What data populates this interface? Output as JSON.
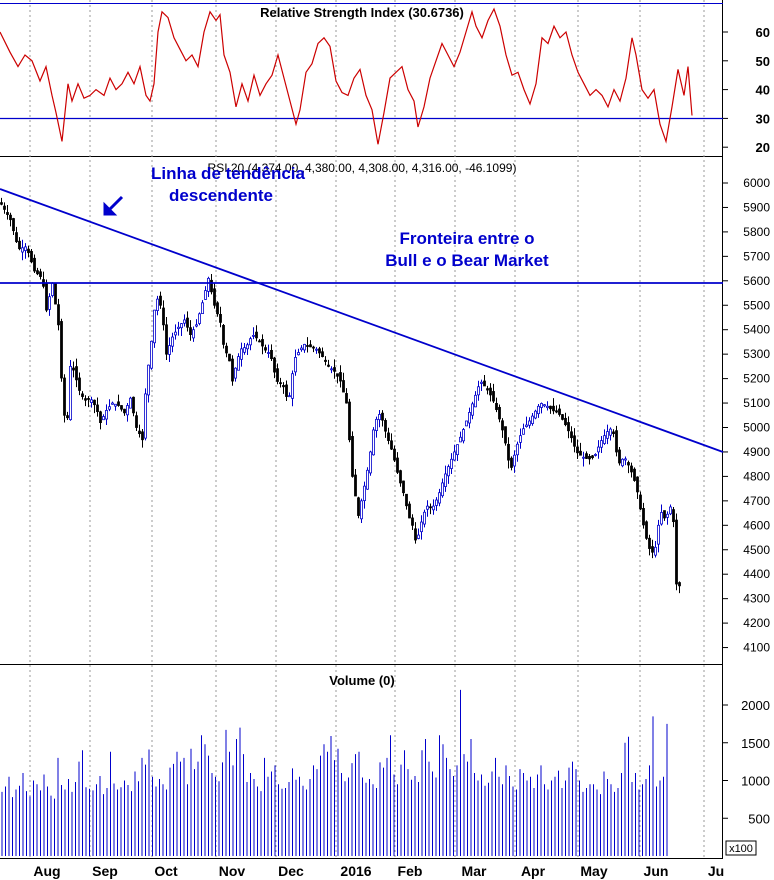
{
  "chart_data": [
    {
      "type": "line",
      "panel": "rsi",
      "title": "Relative Strength Index (30.6736)",
      "ylim": [
        17,
        70
      ],
      "yticks": [
        "60",
        "50",
        "40",
        "30",
        "20"
      ],
      "ytick_values": [
        60,
        50,
        40,
        30,
        20
      ],
      "reference_line": 30,
      "series": [
        {
          "color": "#cc0000",
          "x_index": [
            0,
            10,
            18,
            25,
            32,
            40,
            46,
            52,
            56,
            62,
            68,
            72,
            78,
            84,
            90,
            96,
            104,
            110,
            116,
            122,
            128,
            134,
            140,
            146,
            150,
            154,
            158,
            162,
            168,
            174,
            180,
            186,
            192,
            198,
            204,
            210,
            216,
            220,
            224,
            230,
            236,
            242,
            248,
            254,
            260,
            266,
            272,
            278,
            284,
            290,
            296,
            300,
            306,
            312,
            318,
            324,
            330,
            336,
            342,
            348,
            354,
            360,
            366,
            372,
            378,
            384,
            390,
            396,
            402,
            408,
            414,
            418,
            424,
            430,
            436,
            442,
            448,
            454,
            460,
            466,
            472,
            476,
            482,
            488,
            494,
            500,
            506,
            512,
            518,
            524,
            530,
            536,
            542,
            548,
            554,
            560,
            566,
            572,
            578,
            584,
            590,
            596,
            602,
            608,
            614,
            620,
            626,
            632,
            636,
            642,
            648,
            654,
            660,
            666,
            672,
            678,
            684,
            688,
            692
          ],
          "values": [
            60,
            53,
            48,
            52,
            50,
            43,
            48,
            38,
            32,
            22,
            42,
            36,
            42,
            37,
            38,
            40,
            38,
            44,
            40,
            42,
            46,
            42,
            48,
            38,
            36,
            42,
            60,
            67,
            65,
            58,
            54,
            50,
            52,
            48,
            60,
            67,
            64,
            66,
            52,
            46,
            34,
            42,
            36,
            45,
            38,
            42,
            45,
            52,
            44,
            36,
            28,
            33,
            46,
            49,
            56,
            58,
            55,
            43,
            39,
            38,
            44,
            47,
            38,
            33,
            21,
            32,
            44,
            46,
            48,
            40,
            36,
            27,
            34,
            44,
            50,
            56,
            52,
            48,
            53,
            60,
            67,
            62,
            58,
            64,
            68,
            62,
            52,
            45,
            46,
            40,
            35,
            42,
            58,
            56,
            62,
            58,
            60,
            52,
            46,
            42,
            38,
            40,
            38,
            34,
            40,
            36,
            44,
            58,
            52,
            40,
            37,
            40,
            28,
            22,
            34,
            47,
            38,
            48,
            31
          ]
        }
      ]
    },
    {
      "type": "candlestick",
      "panel": "price",
      "title": "RSI 20 (4,374.00 ,4,380.00, 4,308.00, 4,316.00, -46.1099)",
      "ylim": [
        4080,
        6080
      ],
      "yticks": [
        "6000",
        "5900",
        "5800",
        "5700",
        "5600",
        "5500",
        "5400",
        "5300",
        "5200",
        "5100",
        "5000",
        "4900",
        "4800",
        "4700",
        "4600",
        "4500",
        "4400",
        "4300",
        "4200",
        "4100"
      ],
      "ytick_values": [
        6000,
        5900,
        5800,
        5700,
        5600,
        5500,
        5400,
        5300,
        5200,
        5100,
        5000,
        4900,
        4800,
        4700,
        4600,
        4500,
        4400,
        4300,
        4200,
        4100
      ],
      "annotations": [
        {
          "text_lines": [
            "Linha de tendência",
            "descendente"
          ],
          "color": "#0000cc"
        },
        {
          "text_lines": [
            "Fronteira entre o",
            "Bull e o Bear Market"
          ],
          "color": "#0000cc"
        }
      ],
      "lines": [
        {
          "kind": "horizontal",
          "value": 5590,
          "color": "#0000cc"
        },
        {
          "kind": "trend",
          "from_index": 0,
          "from_value": 5970,
          "to_index": 770,
          "to_value": 4880,
          "color": "#0000cc"
        }
      ],
      "close_path_index": [
        0,
        10,
        18,
        26,
        34,
        42,
        46,
        52,
        58,
        62,
        66,
        70,
        74,
        78,
        84,
        90,
        96,
        100,
        106,
        112,
        118,
        124,
        130,
        136,
        142,
        146,
        150,
        154,
        158,
        162,
        166,
        172,
        178,
        184,
        190,
        196,
        202,
        208,
        214,
        220,
        224,
        228,
        232,
        236,
        240,
        246,
        252,
        258,
        264,
        270,
        276,
        282,
        288,
        294,
        300,
        304,
        310,
        316,
        322,
        328,
        334,
        340,
        346,
        352,
        358,
        362,
        366,
        370,
        374,
        380,
        386,
        392,
        398,
        404,
        408,
        412,
        416,
        420,
        426,
        432,
        438,
        444,
        450,
        456,
        462,
        468,
        474,
        480,
        486,
        492,
        498,
        504,
        510,
        516,
        522,
        528,
        534,
        540,
        546,
        552,
        558,
        564,
        570,
        576,
        582,
        588,
        594,
        600,
        606,
        612,
        618,
        624,
        630,
        636,
        642,
        648,
        654,
        660,
        664,
        668,
        672,
        676,
        680,
        684,
        688,
        692
      ],
      "close_path_values": [
        5920,
        5850,
        5730,
        5740,
        5640,
        5610,
        5480,
        5590,
        5420,
        5130,
        4970,
        5250,
        5230,
        5160,
        5110,
        5120,
        5080,
        5020,
        5070,
        5100,
        5090,
        5060,
        5120,
        5000,
        4950,
        5200,
        5310,
        5480,
        5540,
        5460,
        5300,
        5370,
        5410,
        5440,
        5380,
        5420,
        5510,
        5610,
        5500,
        5430,
        5310,
        5300,
        5190,
        5260,
        5320,
        5330,
        5380,
        5360,
        5320,
        5300,
        5190,
        5180,
        5100,
        5280,
        5320,
        5340,
        5330,
        5320,
        5290,
        5250,
        5230,
        5190,
        5100,
        4800,
        4640,
        4720,
        4800,
        4900,
        5020,
        5060,
        4970,
        4900,
        4800,
        4720,
        4640,
        4600,
        4520,
        4600,
        4680,
        4670,
        4720,
        4800,
        4860,
        4920,
        4980,
        5050,
        5120,
        5190,
        5160,
        5120,
        5050,
        4960,
        4820,
        4920,
        4990,
        5020,
        5060,
        5100,
        5090,
        5070,
        5060,
        5020,
        4970,
        4900,
        4880,
        4870,
        4880,
        4940,
        4980,
        5000,
        4850,
        4880,
        4830,
        4760,
        4620,
        4510,
        4480,
        4660,
        4630,
        4650,
        4700,
        4360,
        4350
      ]
    },
    {
      "type": "bar",
      "panel": "volume",
      "title": "Volume (0)",
      "ylim": [
        0,
        2450
      ],
      "yticks": [
        "2000",
        "1500",
        "1000",
        "500"
      ],
      "ytick_values": [
        2000,
        1500,
        1000,
        500
      ],
      "unit_label": "x100",
      "color": "#0000cc",
      "values": [
        850,
        920,
        1050,
        780,
        880,
        930,
        1100,
        860,
        790,
        1000,
        950,
        870,
        1080,
        920,
        800,
        760,
        1300,
        940,
        880,
        1020,
        850,
        980,
        1250,
        1400,
        910,
        890,
        870,
        950,
        1060,
        820,
        900,
        1380,
        960,
        880,
        910,
        1000,
        940,
        860,
        1120,
        990,
        1300,
        1210,
        1410,
        1050,
        920,
        1020,
        950,
        880,
        1170,
        1220,
        1380,
        1250,
        1300,
        950,
        1420,
        1150,
        1250,
        1600,
        1480,
        1330,
        1100,
        1050,
        990,
        1240,
        1670,
        1380,
        1200,
        1550,
        1700,
        1350,
        980,
        1100,
        1020,
        920,
        860,
        1300,
        1050,
        1120,
        1200,
        950,
        890,
        900,
        980,
        1160,
        1010,
        1050,
        930,
        880,
        1020,
        1200,
        1150,
        1330,
        1480,
        1380,
        1590,
        1270,
        1420,
        1100,
        990,
        1040,
        1230,
        1350,
        1380,
        1040,
        970,
        1020,
        950,
        900,
        1240,
        1170,
        1300,
        1600,
        1080,
        950,
        1210,
        1400,
        1150,
        1010,
        1060,
        980,
        1400,
        1550,
        1250,
        1120,
        1040,
        1600,
        1480,
        1300,
        1150,
        1060,
        1200,
        2200,
        1350,
        1250,
        1550,
        1100,
        1000,
        1080,
        930,
        970,
        1120,
        1300,
        1050,
        950,
        1200,
        1060,
        920,
        880,
        1150,
        1100,
        1000,
        1050,
        900,
        1080,
        1200,
        950,
        880,
        1000,
        1050,
        1130,
        900,
        1000,
        1170,
        1250,
        1150,
        1000,
        850,
        900,
        950,
        950,
        880,
        820,
        1120,
        1020,
        950,
        850,
        900,
        1100,
        1500,
        1580,
        980,
        1100,
        880,
        950,
        1020,
        1200,
        1850,
        920,
        1000,
        1050,
        1750
      ]
    }
  ],
  "x_axis": {
    "labels": [
      "Aug",
      "Sep",
      "Oct",
      "Nov",
      "Dec",
      "2016",
      "Feb",
      "Mar",
      "Apr",
      "May",
      "Jun",
      "Ju"
    ]
  }
}
